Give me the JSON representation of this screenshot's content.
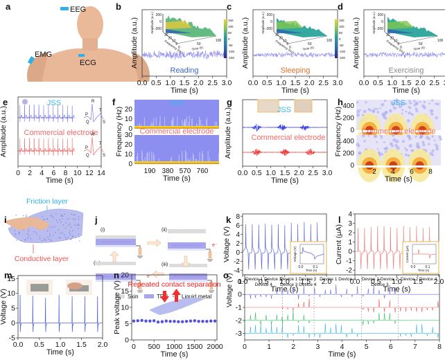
{
  "figure": {
    "panels": {
      "a": {
        "label": "a",
        "sites": [
          "EEG",
          "EMG",
          "ECG"
        ]
      },
      "b": {
        "label": "b"
      },
      "c": {
        "label": "c"
      },
      "d": {
        "label": "d"
      },
      "e": {
        "label": "e"
      },
      "f": {
        "label": "f"
      },
      "g": {
        "label": "g"
      },
      "h": {
        "label": "h"
      },
      "i": {
        "label": "i",
        "top_label": "Friction layer",
        "bottom_label": "Conductive layer"
      },
      "j": {
        "label": "j",
        "steps": [
          "(i)",
          "(ii)",
          "(iii)",
          "(iv)"
        ],
        "electron": "e⁻",
        "legend": [
          "Skin",
          "TPU",
          "Liquid metal"
        ]
      },
      "k": {
        "label": "k"
      },
      "l": {
        "label": "l"
      },
      "m": {
        "label": "m"
      },
      "n": {
        "label": "n"
      },
      "o": {
        "label": "o"
      }
    },
    "colors": {
      "jss_blue": "#3cb4e6",
      "eeg_trace": "#8f8cf0",
      "commercial_red": "#f06a6a",
      "k_trace": "#5b64d8",
      "l_trace": "#f07a7a",
      "inset_border": "#e8c06a",
      "skin": "#dcdcdc",
      "tpu": "#a9a4ee",
      "o_blue": "#6d6de0",
      "o_red": "#f05a5a",
      "o_green": "#33c060",
      "o_cyan": "#33b6e0"
    }
  },
  "chart_data": [
    {
      "id": "b",
      "type": "line",
      "title": "",
      "annotation": "Reading",
      "annotation_color": "#3a66c4",
      "xlabel": "Time (s)",
      "ylabel": "Amplitude (a.u.)",
      "xlim": [
        0,
        3
      ],
      "xticks": [
        "0.0",
        "0.5",
        "1.0",
        "1.5",
        "2.0",
        "2.5",
        "3.0"
      ],
      "inset": {
        "type": "surface",
        "zlabel": "Amplitude (a.u.)",
        "xlabel": "Time (s)",
        "ylabel": "Frequency (Hz)",
        "zticks": [
          "200",
          "0",
          "-200"
        ],
        "xticks": [
          "0",
          "50",
          "100"
        ],
        "yticks": [
          "30",
          "20",
          "10",
          "0"
        ],
        "colorbar": [
          "150",
          "100",
          "50",
          "0",
          "-50",
          "-100",
          "-150"
        ]
      }
    },
    {
      "id": "c",
      "type": "line",
      "annotation": "Sleeping",
      "annotation_color": "#e0702a",
      "xlabel": "Time (s)",
      "ylabel": "Amplitude (a.u.)",
      "xlim": [
        0,
        3
      ],
      "xticks": [
        "0.0",
        "0.5",
        "1.0",
        "1.5",
        "2.0",
        "2.5",
        "3.0"
      ],
      "inset": {
        "type": "surface",
        "zlabel": "Amplitude (a.u.)",
        "xlabel": "Time (s)",
        "ylabel": "Frequency (Hz)",
        "zticks": [
          "200",
          "0",
          "-200"
        ],
        "xticks": [
          "0",
          "50",
          "100"
        ],
        "yticks": [
          "30",
          "20",
          "10",
          "0"
        ],
        "colorbar": [
          "150",
          "100",
          "50",
          "0",
          "-50",
          "-100",
          "-150"
        ]
      }
    },
    {
      "id": "d",
      "type": "line",
      "annotation": "Exercising",
      "annotation_color": "#8a8a8a",
      "xlabel": "Time (s)",
      "ylabel": "Amplitude (a.u.)",
      "xlim": [
        0,
        3
      ],
      "xticks": [
        "0.0",
        "0.5",
        "1.0",
        "1.5",
        "2.0",
        "2.5",
        "3.0"
      ],
      "inset": {
        "type": "surface",
        "zlabel": "Amplitude (a.u.)",
        "xlabel": "Time (s)",
        "ylabel": "Frequency (Hz)",
        "zticks": [
          "200",
          "0",
          "-200"
        ],
        "xticks": [
          "0",
          "50",
          "100"
        ],
        "yticks": [
          "30",
          "20",
          "10",
          "0"
        ],
        "colorbar": [
          "150",
          "100",
          "50",
          "0",
          "-50",
          "-100",
          "-150"
        ]
      }
    },
    {
      "id": "e",
      "type": "line",
      "xlabel": "Time (s)",
      "ylabel": "Amplitude (a.u.)",
      "xlim": [
        0,
        14
      ],
      "xticks": [
        "0",
        "2",
        "4",
        "6",
        "8",
        "10",
        "12",
        "14"
      ],
      "series": [
        {
          "name": "JSS",
          "color": "#3cb4e6",
          "trace_color": "#7b78e8",
          "beats_until_s": 9.5,
          "period_s": 0.8
        },
        {
          "name": "Commercial electrode",
          "color": "#f06a6a",
          "trace_color": "#f06a6a",
          "beats_until_s": 9.5,
          "period_s": 0.8
        }
      ],
      "pqrst_labels": [
        "P",
        "Q",
        "R",
        "T",
        "S"
      ]
    },
    {
      "id": "f",
      "type": "heatmap",
      "xlabel": "Time (s)",
      "ylabel": "Frequency (Hz)",
      "xticks": [
        "190",
        "380",
        "570",
        "760"
      ],
      "yticks": [
        "0",
        "10",
        "20",
        "30"
      ],
      "ylim": [
        0,
        30
      ],
      "series": [
        {
          "name": "JSS",
          "color": "#3cb4e6"
        },
        {
          "name": "Commercial electrode",
          "color": "#f06a6a"
        }
      ]
    },
    {
      "id": "g",
      "type": "line",
      "xlabel": "Time (s)",
      "ylabel": "Amplitude (a.u.)",
      "xlim": [
        0,
        3
      ],
      "xticks": [
        "0.0",
        "0.5",
        "1.0",
        "1.5",
        "2.0",
        "2.5",
        "3.0"
      ],
      "series": [
        {
          "name": "JSS",
          "color": "#3cb4e6",
          "trace_color": "#3b3fe0",
          "burst_centers_s": [
            0.5,
            1.4,
            2.2
          ]
        },
        {
          "name": "Commercial electrode",
          "color": "#f06a6a",
          "trace_color": "#f03a3a",
          "burst_centers_s": [
            0.5,
            1.5,
            2.4
          ]
        }
      ]
    },
    {
      "id": "h",
      "type": "heatmap",
      "xlabel": "Time (s)",
      "ylabel": "Frequency (Hz)",
      "xticks": [
        "2",
        "4",
        "6",
        "8"
      ],
      "yticks": [
        "0",
        "200",
        "400"
      ],
      "ylim": [
        0,
        500
      ],
      "series": [
        {
          "name": "JSS",
          "color": "#3cb4e6",
          "hot_centers_s": [
            1.5,
            4.5,
            7.5
          ]
        },
        {
          "name": "Commercial electrode",
          "color": "#f06a6a",
          "hot_centers_s": [
            1.5,
            4.2,
            7.2
          ]
        }
      ]
    },
    {
      "id": "k",
      "type": "line",
      "xlabel": "Time (s)",
      "ylabel": "Voltage (V)",
      "xlim": [
        0,
        2
      ],
      "ylim": [
        -5,
        8.5
      ],
      "xticks": [
        "0.0",
        "0.5",
        "1.0",
        "1.5",
        "2.0"
      ],
      "yticks": [
        "-4",
        "-2",
        "0",
        "2",
        "4",
        "6",
        "8"
      ],
      "peaks_max_V": [
        6.2,
        6.2,
        6.1,
        6.3,
        6.1,
        6.2,
        6.0,
        6.5,
        6.2,
        6.7,
        6.2,
        6.6
      ],
      "peaks_min_V": -3.8,
      "period_s": 0.155,
      "inset": {
        "xlabel": "Time (s)",
        "ylabel": "Voltage (V)",
        "xticks": [
          "0.0",
          "0.1"
        ]
      }
    },
    {
      "id": "l",
      "type": "line",
      "xlabel": "Time (s)",
      "ylabel": "Current (μA)",
      "xlim": [
        0,
        2
      ],
      "ylim": [
        -2.5,
        4
      ],
      "xticks": [
        "0.0",
        "0.5",
        "1.0",
        "1.5",
        "2.0"
      ],
      "yticks": [
        "-2",
        "-1",
        "0",
        "1",
        "2",
        "3",
        "4"
      ],
      "peaks_max": [
        2.5,
        2.5,
        2.6,
        2.7,
        2.7,
        2.6,
        2.5,
        2.7,
        2.6,
        2.7,
        2.5,
        2.6
      ],
      "peaks_min": -1.9,
      "period_s": 0.155,
      "inset": {
        "xlabel": "Time (s)",
        "ylabel": "Current (μA)",
        "xticks": [
          "0.0",
          "0.1"
        ],
        "yticks": [
          "2",
          "0",
          "-2"
        ]
      }
    },
    {
      "id": "m",
      "type": "line",
      "xlabel": "Time (s)",
      "ylabel": "Voltage (V)",
      "xlim": [
        0,
        2
      ],
      "ylim": [
        -5,
        16
      ],
      "xticks": [
        "0.0",
        "0.5",
        "1.0",
        "1.5",
        "2.0"
      ],
      "yticks": [
        "-5",
        "0",
        "5",
        "10",
        "15"
      ],
      "spike_times_s": [
        0.05,
        0.35,
        0.65,
        0.97,
        1.28,
        1.58,
        1.88
      ],
      "spike_max_V": [
        9.5,
        9.2,
        8.5,
        9.5,
        9.0,
        9.0,
        9.0
      ],
      "spike_min_V": -3.0
    },
    {
      "id": "n",
      "type": "scatter",
      "title": "Repeated contact separation",
      "xlabel": "Time (s)",
      "ylabel": "Peak voltage (V)",
      "xlim": [
        -50,
        2050
      ],
      "ylim": [
        0,
        20
      ],
      "xticks": [
        "0",
        "500",
        "1000",
        "1500",
        "2000"
      ],
      "yticks": [
        "0",
        "5",
        "10",
        "15",
        "20"
      ],
      "x": [
        0,
        100,
        200,
        300,
        400,
        500,
        600,
        700,
        800,
        900,
        1000,
        1100,
        1200,
        1300,
        1400,
        1500,
        1600,
        1700,
        1800,
        1900,
        2000
      ],
      "y": [
        5.8,
        5.9,
        6.0,
        5.8,
        5.8,
        5.9,
        5.5,
        5.6,
        5.8,
        5.7,
        5.7,
        5.6,
        5.6,
        5.7,
        5.8,
        5.9,
        5.7,
        5.7,
        5.7,
        5.8,
        5.8
      ]
    },
    {
      "id": "o",
      "type": "line",
      "xlabel": "Time (s)",
      "ylabel": "Voltage (V)",
      "xlim": [
        0,
        8
      ],
      "ylim": [
        -3.5,
        1.5
      ],
      "xticks": [
        "0",
        "1",
        "2",
        "3",
        "4",
        "5",
        "6",
        "7",
        "8"
      ],
      "yticks": [
        "-3",
        "-2",
        "-1",
        "0",
        "1"
      ],
      "segments": [
        {
          "start": 0,
          "end": 1.55,
          "label": [
            "Device 1 Device 3",
            "Device 4"
          ],
          "active": [
            true,
            false,
            true,
            true
          ]
        },
        {
          "start": 1.55,
          "end": 2.85,
          "label": [
            "Device 1 Device 2",
            "Device 3 Device 4"
          ],
          "active": [
            true,
            true,
            true,
            true
          ]
        },
        {
          "start": 2.85,
          "end": 4.8,
          "label": [
            "Device 1 Device 4"
          ],
          "active": [
            true,
            false,
            false,
            true
          ]
        },
        {
          "start": 4.8,
          "end": 6.3,
          "label": [
            "Device 1 Device 2",
            "Device 3"
          ],
          "active": [
            true,
            true,
            true,
            false
          ]
        },
        {
          "start": 6.3,
          "end": 8,
          "label": [
            "Device 2 Device 4"
          ],
          "active": [
            false,
            true,
            false,
            true
          ]
        }
      ],
      "series": [
        {
          "name": "Device 1",
          "offset": 0
        },
        {
          "name": "Device 2",
          "offset": -1
        },
        {
          "name": "Device 3",
          "offset": -2
        },
        {
          "name": "Device 4",
          "offset": -3
        }
      ]
    }
  ]
}
